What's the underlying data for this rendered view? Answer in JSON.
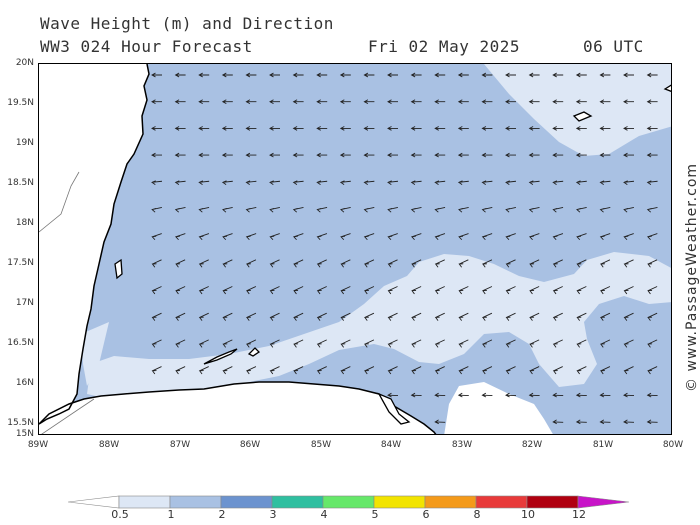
{
  "header": {
    "title": "Wave Height (m) and Direction",
    "forecast": "WW3 024 Hour Forecast",
    "date": "Fri 02 May 2025",
    "time": "06 UTC"
  },
  "axes": {
    "lat_labels": [
      "20N",
      "19.5N",
      "19N",
      "18.5N",
      "18N",
      "17.5N",
      "17N",
      "16.5N",
      "16N",
      "15.5N",
      "15N"
    ],
    "lon_labels": [
      "89W",
      "88W",
      "87W",
      "86W",
      "85W",
      "84W",
      "83W",
      "82W",
      "81W",
      "80W"
    ]
  },
  "credit": "© www.PassageWeather.com",
  "legend": {
    "labels": [
      "0.5",
      "1",
      "2",
      "3",
      "4",
      "5",
      "6",
      "8",
      "10",
      "12"
    ],
    "colors": [
      "#ffffff",
      "#dde7f5",
      "#a9c1e3",
      "#6c93cf",
      "#2fbfa0",
      "#66e86a",
      "#f2e400",
      "#f49a1a",
      "#e83a3a",
      "#b00010",
      "#c814c8"
    ]
  },
  "map": {
    "colors": {
      "dark_band": "#a9c1e3",
      "light_band": "#dde7f5",
      "land": "#ffffff",
      "coast": "#000000"
    },
    "arrow_icon": "wave-direction-arrow-icon"
  }
}
